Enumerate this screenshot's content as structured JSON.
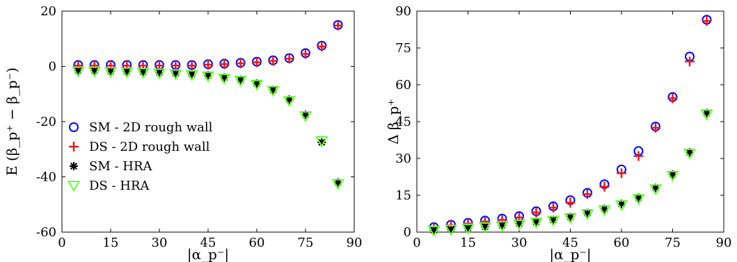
{
  "chart_data": [
    {
      "type": "scatter",
      "xlabel": "|α_p⁻|",
      "ylabel": "E (β_p⁺ − β_p⁻)",
      "xlim": [
        0,
        90
      ],
      "ylim": [
        -60,
        20
      ],
      "xticks": [
        "0",
        "15",
        "30",
        "45",
        "60",
        "75",
        "90"
      ],
      "yticks": [
        "-60",
        "-40",
        "-20",
        "0",
        "20"
      ],
      "grid": false,
      "legend_position": "center-left",
      "x": [
        5,
        10,
        15,
        20,
        25,
        30,
        35,
        40,
        45,
        50,
        55,
        60,
        65,
        70,
        75,
        80,
        85
      ],
      "series": [
        {
          "name": "SM - 2D rough wall",
          "marker": "circle",
          "color": "#0000ff",
          "values": [
            0.5,
            0.5,
            0.5,
            0.5,
            0.5,
            0.5,
            0.5,
            0.5,
            0.8,
            1.0,
            1.3,
            1.7,
            2.2,
            3.0,
            4.8,
            7.5,
            15.0
          ]
        },
        {
          "name": "DS - 2D rough wall",
          "marker": "plus",
          "color": "#e31a1c",
          "values": [
            0.3,
            0.3,
            0.3,
            0.3,
            0.3,
            0.3,
            0.3,
            0.3,
            0.6,
            0.8,
            1.1,
            1.5,
            2.0,
            2.8,
            4.5,
            7.2,
            14.8
          ]
        },
        {
          "name": "SM - HRA",
          "marker": "asterisk",
          "color": "#000000",
          "values": [
            -1.5,
            -1.5,
            -1.7,
            -1.8,
            -2.0,
            -2.2,
            -2.5,
            -2.8,
            -3.2,
            -4.0,
            -4.8,
            -6.2,
            -8.5,
            -12.0,
            -17.5,
            -27.5,
            -42.0
          ]
        },
        {
          "name": "DS - HRA",
          "marker": "triangle-down",
          "color": "#66ff33",
          "values": [
            -1.8,
            -1.8,
            -2.0,
            -2.1,
            -2.3,
            -2.5,
            -2.8,
            -3.1,
            -3.6,
            -4.4,
            -5.2,
            -6.6,
            -8.8,
            -12.5,
            -18.0,
            -27.0,
            -42.5
          ]
        }
      ]
    },
    {
      "type": "scatter",
      "xlabel": "|α_p⁻|",
      "ylabel": "Δ β_p⁺",
      "xlim": [
        0,
        90
      ],
      "ylim": [
        0,
        90
      ],
      "xticks": [
        "0",
        "15",
        "30",
        "45",
        "60",
        "75",
        "90"
      ],
      "yticks": [
        "0",
        "15",
        "30",
        "45",
        "60",
        "75",
        "90"
      ],
      "grid": false,
      "x": [
        5,
        10,
        15,
        20,
        25,
        30,
        35,
        40,
        45,
        50,
        55,
        60,
        65,
        70,
        75,
        80,
        85
      ],
      "series": [
        {
          "name": "SM - 2D rough wall",
          "marker": "circle",
          "color": "#0000ff",
          "values": [
            2.0,
            3.0,
            3.8,
            4.7,
            5.5,
            6.5,
            8.5,
            10.5,
            13.0,
            16.0,
            19.5,
            25.5,
            33.0,
            43.0,
            55.0,
            71.5,
            86.5
          ]
        },
        {
          "name": "DS - 2D rough wall",
          "marker": "plus",
          "color": "#e31a1c",
          "values": [
            1.8,
            2.8,
            3.5,
            4.3,
            5.0,
            6.0,
            8.0,
            10.0,
            12.0,
            15.5,
            18.5,
            24.0,
            31.0,
            42.5,
            54.5,
            69.5,
            86.0
          ]
        },
        {
          "name": "SM - HRA",
          "marker": "asterisk",
          "color": "#000000",
          "values": [
            0.8,
            1.2,
            1.7,
            2.2,
            2.8,
            3.5,
            4.2,
            5.0,
            6.2,
            7.8,
            9.5,
            11.5,
            14.0,
            18.0,
            23.5,
            32.5,
            48.5
          ]
        },
        {
          "name": "DS - HRA",
          "marker": "triangle-down",
          "color": "#66ff33",
          "values": [
            0.6,
            1.0,
            1.5,
            2.0,
            2.5,
            3.2,
            3.9,
            4.7,
            5.8,
            7.4,
            9.0,
            11.0,
            13.5,
            17.5,
            23.0,
            32.0,
            48.0
          ]
        }
      ]
    }
  ]
}
